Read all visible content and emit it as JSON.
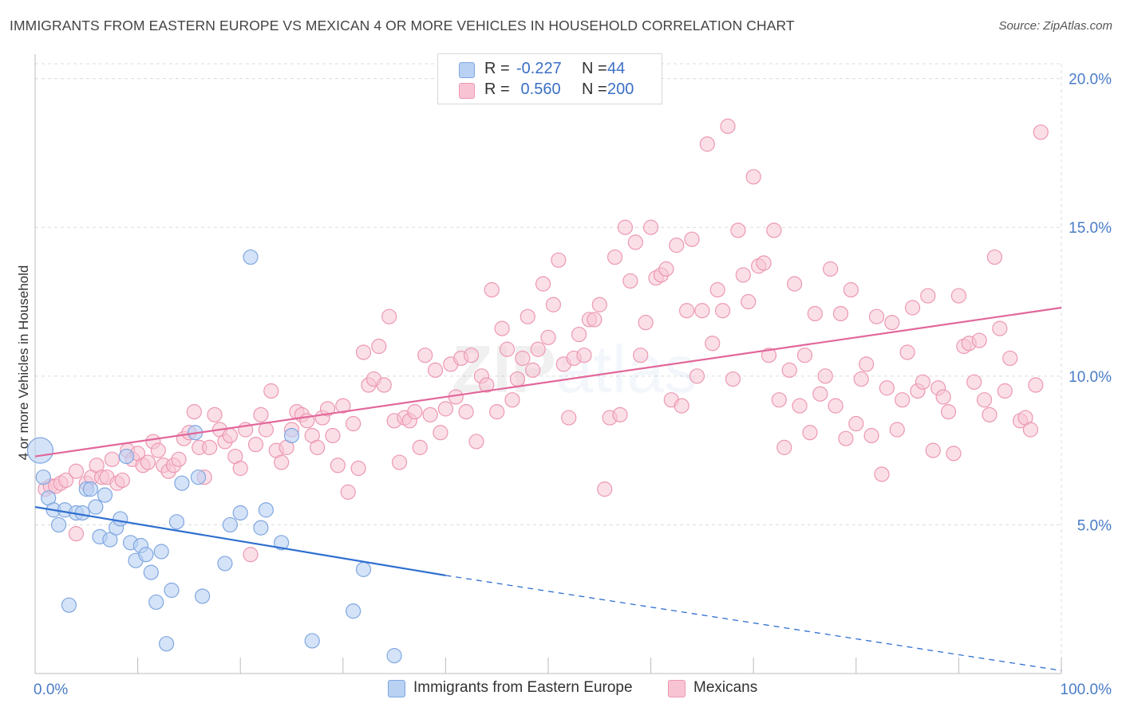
{
  "title": "IMMIGRANTS FROM EASTERN EUROPE VS MEXICAN 4 OR MORE VEHICLES IN HOUSEHOLD CORRELATION CHART",
  "source": "Source: ZipAtlas.com",
  "watermark": "ZIPatlas",
  "colors": {
    "blue_fill": "#b9d1f3",
    "blue_stroke": "#7fa7e0",
    "blue_line": "#2f6fd0",
    "pink_fill": "#f8c4d3",
    "pink_stroke": "#ec98b2",
    "pink_line": "#e2679a",
    "axis_text": "#4a7cc8",
    "grid": "#dcdcdc"
  },
  "legend_stats": [
    {
      "series": "Immigrants from Eastern Europe",
      "r_label": "R =",
      "r_value": "-0.227",
      "n_label": "N =",
      "n_value": "44",
      "color": "#b9d1f3"
    },
    {
      "series": "Mexicans",
      "r_label": "R =",
      "r_value": " 0.560",
      "n_label": "N =",
      "n_value": "200",
      "color": "#f8c4d3"
    }
  ],
  "chart_data": {
    "type": "scatter",
    "title": "IMMIGRANTS FROM EASTERN EUROPE VS MEXICAN 4 OR MORE VEHICLES IN HOUSEHOLD CORRELATION CHART",
    "xlabel": "",
    "ylabel": "4 or more Vehicles in Household",
    "xlim": [
      0,
      100
    ],
    "ylim": [
      0,
      20.5
    ],
    "x_tick_labels": [
      "0.0%",
      "100.0%"
    ],
    "y_tick_labels": [
      "5.0%",
      "10.0%",
      "15.0%",
      "20.0%"
    ],
    "y_ticks": [
      5,
      10,
      15,
      20
    ],
    "grid": true,
    "legend": "bottom-center",
    "series": [
      {
        "name": "Immigrants from Eastern Europe",
        "color": "#b9d1f3",
        "trend": {
          "x": [
            0,
            40
          ],
          "y": [
            5.6,
            3.3
          ],
          "dashed_to": [
            100,
            0.1
          ]
        },
        "points": [
          [
            0.5,
            7.5
          ],
          [
            0.8,
            6.6
          ],
          [
            1.3,
            5.9
          ],
          [
            1.8,
            5.5
          ],
          [
            2.3,
            5.0
          ],
          [
            2.9,
            5.5
          ],
          [
            3.3,
            2.3
          ],
          [
            4.0,
            5.4
          ],
          [
            4.6,
            5.4
          ],
          [
            5.0,
            6.2
          ],
          [
            5.4,
            6.2
          ],
          [
            5.9,
            5.6
          ],
          [
            6.3,
            4.6
          ],
          [
            6.8,
            6.0
          ],
          [
            7.3,
            4.5
          ],
          [
            7.9,
            4.9
          ],
          [
            8.3,
            5.2
          ],
          [
            8.9,
            7.3
          ],
          [
            9.3,
            4.4
          ],
          [
            9.8,
            3.8
          ],
          [
            10.3,
            4.3
          ],
          [
            10.8,
            4.0
          ],
          [
            11.3,
            3.4
          ],
          [
            11.8,
            2.4
          ],
          [
            12.3,
            4.1
          ],
          [
            12.8,
            1.0
          ],
          [
            13.3,
            2.8
          ],
          [
            13.8,
            5.1
          ],
          [
            14.3,
            6.4
          ],
          [
            15.6,
            8.1
          ],
          [
            15.9,
            6.6
          ],
          [
            16.3,
            2.6
          ],
          [
            18.5,
            3.7
          ],
          [
            19.0,
            5.0
          ],
          [
            20.0,
            5.4
          ],
          [
            21.0,
            14.0
          ],
          [
            22.0,
            4.9
          ],
          [
            22.5,
            5.5
          ],
          [
            24.0,
            4.4
          ],
          [
            25.0,
            8.0
          ],
          [
            27.0,
            1.1
          ],
          [
            31.0,
            2.1
          ],
          [
            32.0,
            3.5
          ],
          [
            35.0,
            0.6
          ]
        ]
      },
      {
        "name": "Mexicans",
        "color": "#f8c4d3",
        "trend": {
          "x": [
            0,
            100
          ],
          "y": [
            7.3,
            12.3
          ]
        },
        "points": [
          [
            1,
            6.2
          ],
          [
            1.5,
            6.3
          ],
          [
            2,
            6.3
          ],
          [
            2.5,
            6.4
          ],
          [
            3,
            6.5
          ],
          [
            4,
            4.7
          ],
          [
            4,
            6.8
          ],
          [
            5,
            6.4
          ],
          [
            5.5,
            6.6
          ],
          [
            6,
            7.0
          ],
          [
            6.5,
            6.6
          ],
          [
            7,
            6.6
          ],
          [
            7.5,
            7.2
          ],
          [
            8,
            6.4
          ],
          [
            8.5,
            6.5
          ],
          [
            9,
            7.5
          ],
          [
            9.5,
            7.2
          ],
          [
            10,
            7.4
          ],
          [
            10.5,
            7.0
          ],
          [
            11,
            7.1
          ],
          [
            11.5,
            7.8
          ],
          [
            12,
            7.5
          ],
          [
            12.5,
            7.0
          ],
          [
            13,
            6.8
          ],
          [
            13.5,
            7.0
          ],
          [
            14,
            7.2
          ],
          [
            14.5,
            7.9
          ],
          [
            15,
            8.1
          ],
          [
            15.5,
            8.8
          ],
          [
            16,
            7.6
          ],
          [
            16.5,
            6.6
          ],
          [
            17,
            7.6
          ],
          [
            17.5,
            8.7
          ],
          [
            18,
            8.2
          ],
          [
            18.5,
            7.8
          ],
          [
            19,
            8.0
          ],
          [
            19.5,
            7.3
          ],
          [
            20,
            6.9
          ],
          [
            20.5,
            8.2
          ],
          [
            21,
            4.0
          ],
          [
            21.5,
            7.7
          ],
          [
            22,
            8.7
          ],
          [
            22.5,
            8.2
          ],
          [
            23,
            9.5
          ],
          [
            23.5,
            7.5
          ],
          [
            24,
            7.1
          ],
          [
            24.5,
            7.6
          ],
          [
            25,
            8.2
          ],
          [
            25.5,
            8.8
          ],
          [
            26,
            8.7
          ],
          [
            26.5,
            8.5
          ],
          [
            27,
            8.0
          ],
          [
            27.5,
            7.6
          ],
          [
            28,
            8.6
          ],
          [
            28.5,
            8.9
          ],
          [
            29,
            8.0
          ],
          [
            29.5,
            7.0
          ],
          [
            30,
            9.0
          ],
          [
            30.5,
            6.1
          ],
          [
            31,
            8.4
          ],
          [
            31.5,
            6.9
          ],
          [
            32,
            10.8
          ],
          [
            32.5,
            9.7
          ],
          [
            33,
            9.9
          ],
          [
            33.5,
            11.0
          ],
          [
            34,
            9.7
          ],
          [
            34.5,
            12.0
          ],
          [
            35,
            8.5
          ],
          [
            35.5,
            7.1
          ],
          [
            36,
            8.6
          ],
          [
            36.5,
            8.5
          ],
          [
            37,
            8.8
          ],
          [
            37.5,
            7.6
          ],
          [
            38,
            10.7
          ],
          [
            38.5,
            8.7
          ],
          [
            39,
            10.2
          ],
          [
            39.5,
            8.1
          ],
          [
            40,
            8.9
          ],
          [
            40.5,
            10.4
          ],
          [
            41,
            9.3
          ],
          [
            41.5,
            10.6
          ],
          [
            42,
            8.8
          ],
          [
            42.5,
            10.7
          ],
          [
            43,
            7.8
          ],
          [
            43.5,
            10.0
          ],
          [
            44,
            9.7
          ],
          [
            44.5,
            12.9
          ],
          [
            45,
            8.8
          ],
          [
            45.5,
            11.6
          ],
          [
            46,
            10.9
          ],
          [
            46.5,
            9.2
          ],
          [
            47,
            9.9
          ],
          [
            47.5,
            10.6
          ],
          [
            48,
            12.0
          ],
          [
            48.5,
            10.2
          ],
          [
            49,
            10.9
          ],
          [
            49.5,
            13.1
          ],
          [
            50,
            11.3
          ],
          [
            50.5,
            12.4
          ],
          [
            51,
            13.9
          ],
          [
            51.5,
            10.4
          ],
          [
            52,
            8.6
          ],
          [
            52.5,
            10.6
          ],
          [
            53,
            11.4
          ],
          [
            53.5,
            10.7
          ],
          [
            54,
            11.9
          ],
          [
            54.5,
            11.9
          ],
          [
            55,
            12.4
          ],
          [
            55.5,
            6.2
          ],
          [
            56,
            8.6
          ],
          [
            56.5,
            14.0
          ],
          [
            57,
            8.7
          ],
          [
            57.5,
            15.0
          ],
          [
            58,
            13.2
          ],
          [
            58.5,
            14.5
          ],
          [
            59,
            10.7
          ],
          [
            59.5,
            11.8
          ],
          [
            60,
            15.0
          ],
          [
            60.5,
            13.3
          ],
          [
            61,
            13.4
          ],
          [
            61.5,
            13.6
          ],
          [
            62,
            9.2
          ],
          [
            62.5,
            14.4
          ],
          [
            63,
            9.0
          ],
          [
            63.5,
            12.2
          ],
          [
            64,
            14.6
          ],
          [
            64.5,
            10.0
          ],
          [
            65,
            12.2
          ],
          [
            65.5,
            17.8
          ],
          [
            66,
            11.1
          ],
          [
            66.5,
            12.9
          ],
          [
            67,
            12.2
          ],
          [
            67.5,
            18.4
          ],
          [
            68,
            9.9
          ],
          [
            68.5,
            14.9
          ],
          [
            69,
            13.4
          ],
          [
            69.5,
            12.5
          ],
          [
            70,
            16.7
          ],
          [
            70.5,
            13.7
          ],
          [
            71,
            13.8
          ],
          [
            71.5,
            10.7
          ],
          [
            72,
            14.9
          ],
          [
            72.5,
            9.2
          ],
          [
            73,
            7.6
          ],
          [
            73.5,
            10.2
          ],
          [
            74,
            13.1
          ],
          [
            74.5,
            9.0
          ],
          [
            75,
            10.7
          ],
          [
            75.5,
            8.1
          ],
          [
            76,
            12.1
          ],
          [
            76.5,
            9.4
          ],
          [
            77,
            10.0
          ],
          [
            77.5,
            13.6
          ],
          [
            78,
            9.0
          ],
          [
            78.5,
            12.1
          ],
          [
            79,
            7.9
          ],
          [
            79.5,
            12.9
          ],
          [
            80,
            8.4
          ],
          [
            80.5,
            9.9
          ],
          [
            81,
            10.4
          ],
          [
            81.5,
            8.0
          ],
          [
            82,
            12.0
          ],
          [
            82.5,
            6.7
          ],
          [
            83,
            9.6
          ],
          [
            83.5,
            11.8
          ],
          [
            84,
            8.2
          ],
          [
            84.5,
            9.2
          ],
          [
            85,
            10.8
          ],
          [
            85.5,
            12.3
          ],
          [
            86,
            9.5
          ],
          [
            86.5,
            9.8
          ],
          [
            87,
            12.7
          ],
          [
            87.5,
            7.5
          ],
          [
            88,
            9.6
          ],
          [
            88.5,
            9.3
          ],
          [
            89,
            8.8
          ],
          [
            89.5,
            7.4
          ],
          [
            90,
            12.7
          ],
          [
            90.5,
            11.0
          ],
          [
            91,
            11.1
          ],
          [
            91.5,
            9.8
          ],
          [
            92,
            11.2
          ],
          [
            92.5,
            9.2
          ],
          [
            93,
            8.7
          ],
          [
            93.5,
            14.0
          ],
          [
            94,
            11.6
          ],
          [
            94.5,
            9.5
          ],
          [
            95,
            10.6
          ],
          [
            96,
            8.5
          ],
          [
            96.5,
            8.6
          ],
          [
            97,
            8.2
          ],
          [
            97.5,
            9.7
          ],
          [
            98,
            18.2
          ]
        ]
      }
    ]
  }
}
